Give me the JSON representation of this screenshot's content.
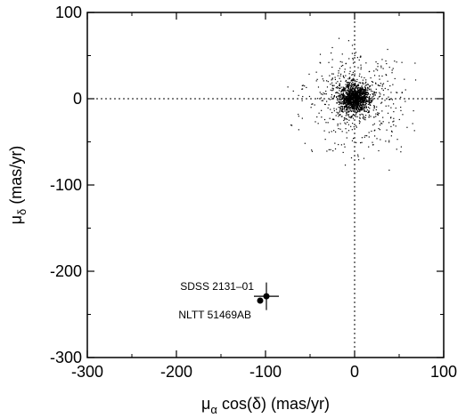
{
  "chart_data": {
    "type": "scatter",
    "title": "",
    "xlabel": {
      "mu": "μ",
      "sub": "α",
      "rest": " cos(δ) (mas/yr)"
    },
    "ylabel": {
      "mu": "μ",
      "sub": "δ",
      "rest": " (mas/yr)"
    },
    "xlim": [
      -300,
      100
    ],
    "ylim": [
      -300,
      100
    ],
    "xticks": [
      -300,
      -200,
      -100,
      0,
      100
    ],
    "yticks": [
      -300,
      -200,
      -100,
      0,
      100
    ],
    "x_tick_labels": [
      "-300",
      "-200",
      "-100",
      "0",
      "100"
    ],
    "y_tick_labels": [
      "-300",
      "-200",
      "-100",
      "0",
      "100"
    ],
    "zero_lines": {
      "x": 0,
      "y": 0,
      "style": "dotted"
    },
    "grid": false,
    "background_field": {
      "description": "dense cloud of field stars centred near the origin",
      "center": [
        0,
        0
      ],
      "sigma_core": 8,
      "sigma_halo": 28,
      "count": 1800,
      "x_range": [
        -80,
        85
      ],
      "y_range": [
        -120,
        70
      ]
    },
    "highlighted_points": [
      {
        "name": "SDSS 2131-01",
        "x": -99,
        "y": -229,
        "xerr": 14,
        "yerr": 16
      },
      {
        "name": "NLTT 51469AB",
        "x": -106,
        "y": -234
      }
    ],
    "annotations": [
      "SDSS 2131–01",
      "NLTT 51469AB"
    ]
  }
}
